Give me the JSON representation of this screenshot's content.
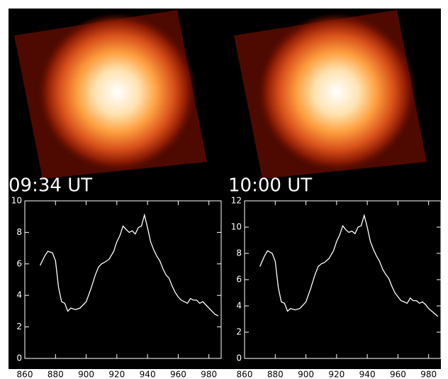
{
  "chart_data": [
    {
      "type": "line",
      "title": "09:34 UT",
      "x": [
        870,
        873,
        875,
        878,
        880,
        882,
        884,
        886,
        888,
        890,
        893,
        896,
        900,
        903,
        906,
        908,
        910,
        912,
        915,
        918,
        920,
        922,
        924,
        926,
        928,
        930,
        932,
        934,
        936,
        938,
        940,
        942,
        944,
        946,
        948,
        950,
        952,
        954,
        956,
        958,
        960,
        962,
        964,
        966,
        968,
        970,
        972,
        974,
        976,
        978,
        980,
        982,
        984,
        986
      ],
      "values": [
        5.9,
        6.5,
        6.8,
        6.7,
        6.2,
        4.5,
        3.6,
        3.5,
        3.0,
        3.2,
        3.1,
        3.2,
        3.6,
        4.4,
        5.3,
        5.8,
        6.0,
        6.1,
        6.3,
        6.8,
        7.4,
        7.8,
        8.4,
        8.2,
        8.0,
        8.1,
        7.9,
        8.3,
        8.4,
        9.1,
        8.3,
        7.4,
        6.9,
        6.5,
        6.2,
        5.7,
        5.3,
        5.1,
        4.6,
        4.2,
        3.9,
        3.7,
        3.6,
        3.5,
        3.8,
        3.7,
        3.7,
        3.5,
        3.6,
        3.4,
        3.2,
        3.0,
        2.8,
        2.7
      ],
      "color": "#ffffff",
      "xlim": [
        860,
        988
      ],
      "xticks": [
        860,
        880,
        900,
        920,
        940,
        960,
        980
      ],
      "ylim": [
        0,
        10
      ],
      "yticks": [
        0,
        2,
        4,
        6,
        8,
        10
      ]
    },
    {
      "type": "line",
      "title": "10:00 UT",
      "x": [
        870,
        873,
        875,
        878,
        880,
        882,
        884,
        886,
        888,
        890,
        893,
        896,
        900,
        903,
        906,
        908,
        910,
        912,
        915,
        918,
        920,
        922,
        924,
        926,
        928,
        930,
        932,
        934,
        936,
        938,
        940,
        942,
        944,
        946,
        948,
        950,
        952,
        954,
        956,
        958,
        960,
        962,
        964,
        966,
        968,
        970,
        972,
        974,
        976,
        978,
        980,
        982,
        984,
        986
      ],
      "values": [
        7.0,
        7.8,
        8.2,
        8.0,
        7.4,
        5.4,
        4.3,
        4.2,
        3.6,
        3.8,
        3.7,
        3.8,
        4.3,
        5.3,
        6.4,
        7.0,
        7.2,
        7.3,
        7.6,
        8.2,
        8.9,
        9.4,
        10.1,
        9.8,
        9.6,
        9.7,
        9.5,
        10.0,
        10.1,
        10.9,
        10.0,
        8.9,
        8.3,
        7.8,
        7.4,
        6.8,
        6.4,
        6.1,
        5.5,
        5.0,
        4.7,
        4.4,
        4.3,
        4.2,
        4.6,
        4.4,
        4.4,
        4.2,
        4.3,
        4.1,
        3.8,
        3.6,
        3.4,
        3.2
      ],
      "color": "#ffffff",
      "xlim": [
        860,
        988
      ],
      "xticks": [
        860,
        880,
        900,
        920,
        940,
        960,
        980
      ],
      "ylim": [
        0,
        12
      ],
      "yticks": [
        0,
        2,
        4,
        6,
        8,
        10,
        12
      ]
    }
  ]
}
